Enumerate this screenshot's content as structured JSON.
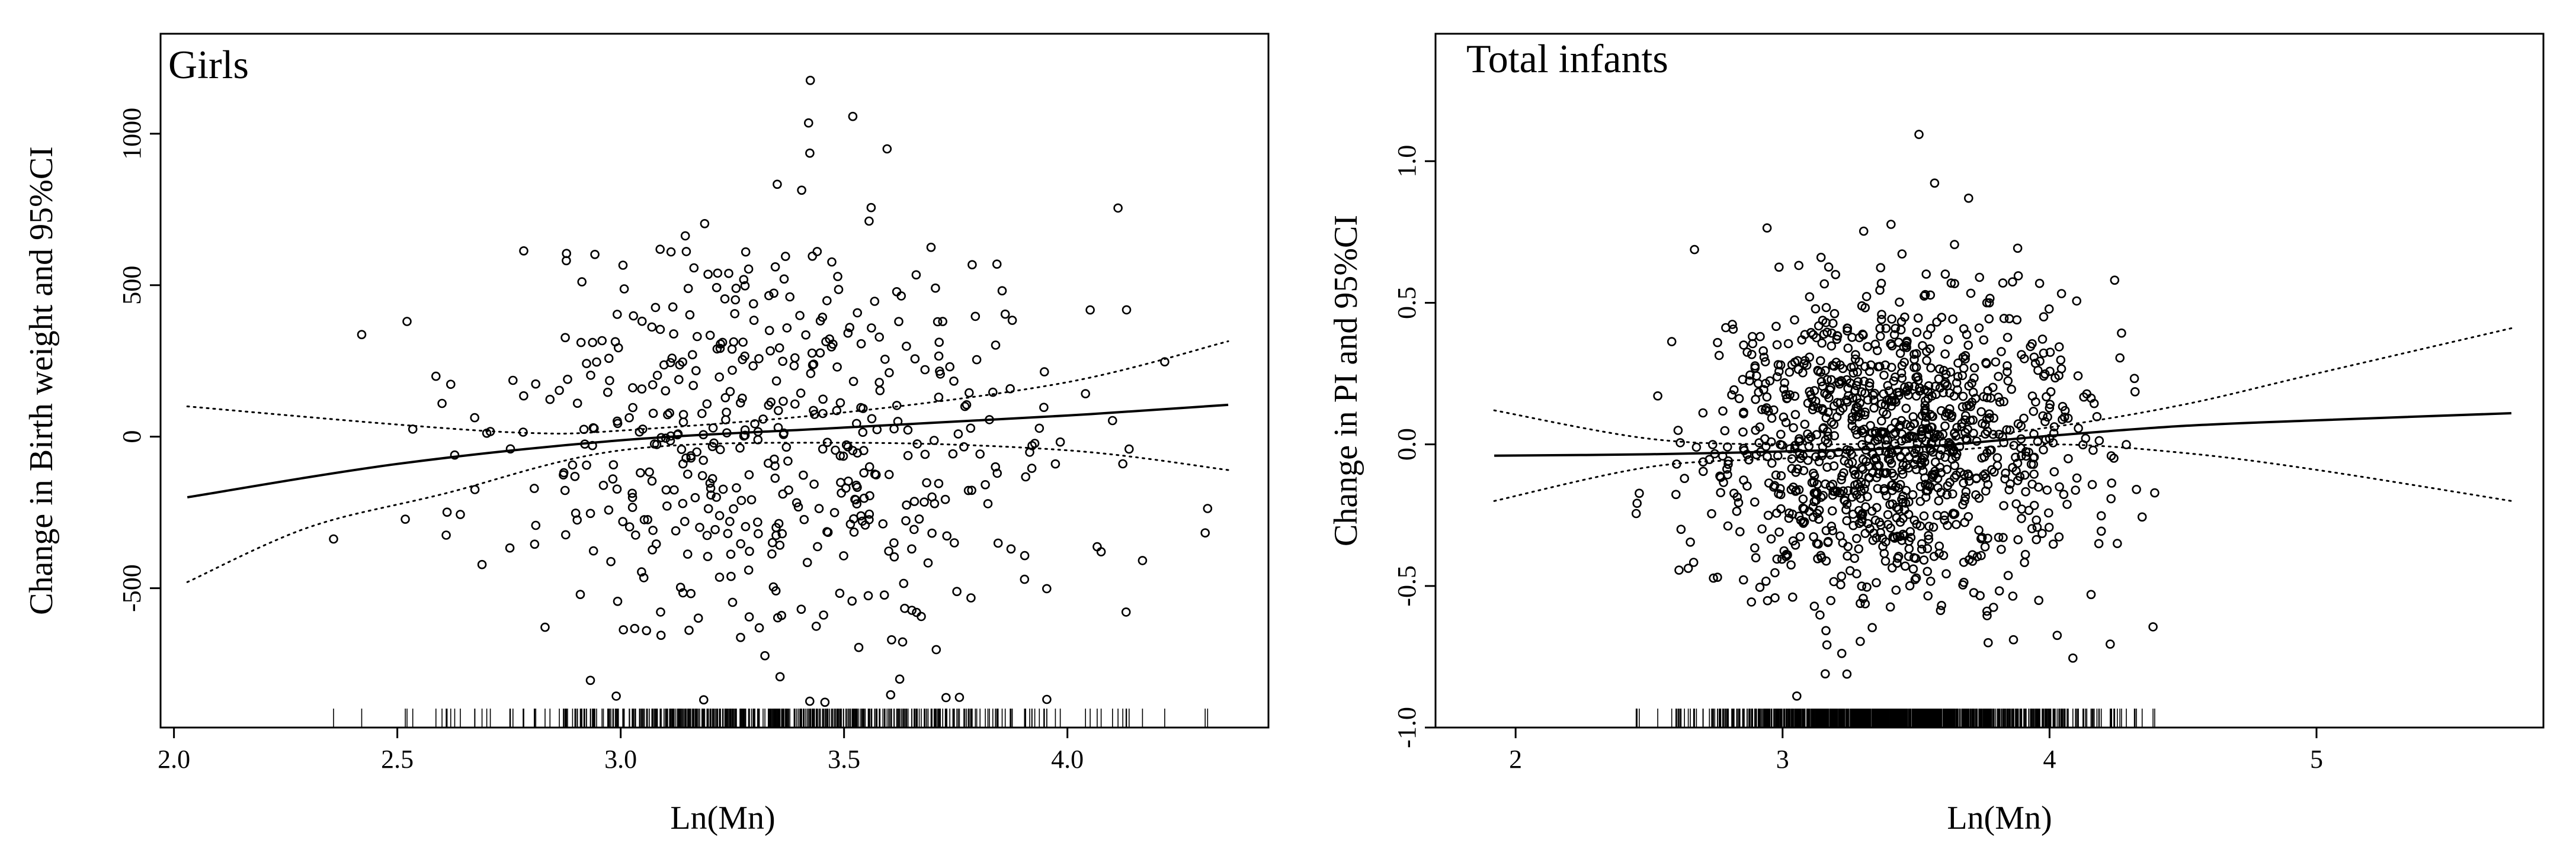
{
  "chart_data": [
    {
      "type": "scatter",
      "title": "Girls",
      "xlabel": "Ln(Mn)",
      "ylabel": "Change in Birth weight and 95%CI",
      "xlim": [
        1.97,
        4.45
      ],
      "ylim": [
        -960,
        1330
      ],
      "x_ticks": [
        2.0,
        2.5,
        3.0,
        3.5,
        4.0
      ],
      "x_tick_labels": [
        "2.0",
        "2.5",
        "3.0",
        "3.5",
        "4.0"
      ],
      "y_ticks": [
        -500,
        0,
        500,
        1000
      ],
      "y_tick_labels": [
        "-500",
        "0",
        "500",
        "1000"
      ],
      "fit": {
        "name": "fit",
        "x": [
          2.03,
          2.5,
          3.0,
          3.5,
          4.0,
          4.36
        ],
        "y": [
          -200,
          -90,
          -12,
          30,
          70,
          105
        ]
      },
      "ci_upper": {
        "name": "95%CI upper",
        "x": [
          2.03,
          2.5,
          2.8,
          3.0,
          3.5,
          4.0,
          4.36
        ],
        "y": [
          100,
          40,
          12,
          20,
          80,
          180,
          315
        ]
      },
      "ci_lower": {
        "name": "95%CI lower",
        "x": [
          2.03,
          2.3,
          2.6,
          3.0,
          3.5,
          4.0,
          4.36
        ],
        "y": [
          -480,
          -300,
          -190,
          -45,
          -20,
          -45,
          -110
        ]
      },
      "n_points": 520,
      "point_seed": 11,
      "x_center": 3.35,
      "x_spread": 0.33,
      "y_center": 0,
      "y_spread": 380
    },
    {
      "type": "scatter",
      "title": "Total infants",
      "xlabel": "Ln(Mn)",
      "ylabel": "Change in PI and 95%CI",
      "xlim": [
        1.7,
        5.85
      ],
      "ylim": [
        -1.0,
        1.45
      ],
      "x_ticks": [
        2,
        3,
        4,
        5
      ],
      "x_tick_labels": [
        "2",
        "3",
        "4",
        "5"
      ],
      "y_ticks": [
        -1.0,
        -0.5,
        0.0,
        0.5,
        1.0
      ],
      "y_tick_labels": [
        "-1.0",
        "-0.5",
        "0.0",
        "0.5",
        "1.0"
      ],
      "fit": {
        "name": "fit",
        "x": [
          1.92,
          2.5,
          3.0,
          3.5,
          4.0,
          4.5,
          5.0,
          5.73
        ],
        "y": [
          -0.04,
          -0.035,
          -0.025,
          -0.01,
          0.03,
          0.065,
          0.085,
          0.11
        ]
      },
      "ci_upper": {
        "name": "95%CI upper",
        "x": [
          1.92,
          2.5,
          3.0,
          3.5,
          4.0,
          4.5,
          5.0,
          5.73
        ],
        "y": [
          0.12,
          0.02,
          0.0,
          0.01,
          0.06,
          0.14,
          0.25,
          0.41
        ]
      },
      "ci_lower": {
        "name": "95%CI lower",
        "x": [
          1.92,
          2.5,
          3.0,
          3.5,
          4.0,
          4.5,
          5.0,
          5.73
        ],
        "y": [
          -0.2,
          -0.08,
          -0.05,
          -0.03,
          0.0,
          -0.03,
          -0.09,
          -0.2
        ]
      },
      "n_points": 1150,
      "point_seed": 29,
      "x_center": 3.4,
      "x_spread": 0.35,
      "y_center": 0,
      "y_spread": 0.27
    }
  ]
}
